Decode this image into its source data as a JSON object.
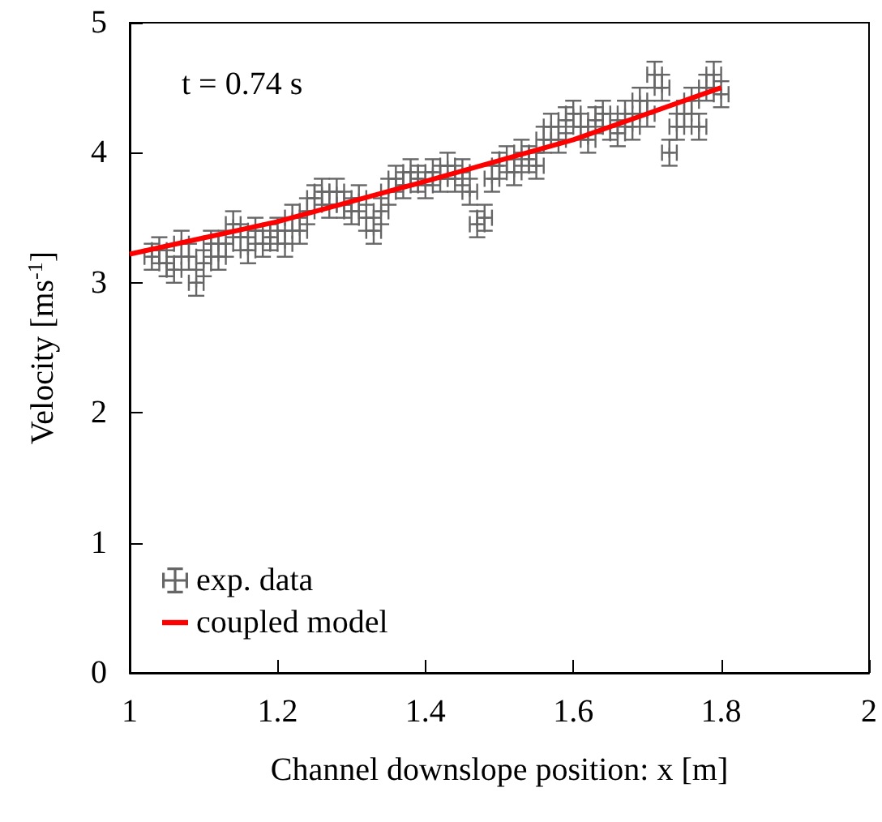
{
  "chart_data": {
    "type": "scatter",
    "xlabel": "Channel downslope position: x [m]",
    "ylabel": "Velocity [ms$^{-1}$]",
    "xlim": [
      1,
      2
    ],
    "xticks": [
      1,
      1.2,
      1.4,
      1.6,
      1.8,
      2
    ],
    "ylim": [
      0,
      5
    ],
    "yticks": [
      0,
      1,
      2,
      3,
      4,
      5
    ],
    "annotations": [
      "t = 0.74 s"
    ],
    "legend": "bottom left",
    "grid": false,
    "series": [
      {
        "name": "exp. data",
        "marker": "cross",
        "color": "#666666",
        "x": [
          1.03,
          1.04,
          1.05,
          1.06,
          1.07,
          1.08,
          1.09,
          1.1,
          1.11,
          1.12,
          1.13,
          1.14,
          1.15,
          1.16,
          1.17,
          1.18,
          1.19,
          1.2,
          1.21,
          1.22,
          1.23,
          1.24,
          1.25,
          1.26,
          1.27,
          1.28,
          1.29,
          1.3,
          1.31,
          1.32,
          1.33,
          1.34,
          1.35,
          1.36,
          1.37,
          1.38,
          1.39,
          1.4,
          1.41,
          1.42,
          1.43,
          1.44,
          1.45,
          1.46,
          1.47,
          1.48,
          1.49,
          1.5,
          1.51,
          1.52,
          1.53,
          1.54,
          1.55,
          1.56,
          1.57,
          1.58,
          1.59,
          1.6,
          1.61,
          1.62,
          1.63,
          1.64,
          1.65,
          1.66,
          1.67,
          1.68,
          1.69,
          1.7,
          1.71,
          1.72,
          1.73,
          1.74,
          1.75,
          1.76,
          1.77,
          1.78,
          1.79,
          1.8
        ],
        "values": [
          3.2,
          3.25,
          3.15,
          3.1,
          3.3,
          3.2,
          3.0,
          3.15,
          3.3,
          3.2,
          3.3,
          3.45,
          3.35,
          3.25,
          3.4,
          3.3,
          3.35,
          3.4,
          3.3,
          3.5,
          3.4,
          3.55,
          3.65,
          3.7,
          3.6,
          3.7,
          3.6,
          3.55,
          3.65,
          3.5,
          3.4,
          3.55,
          3.7,
          3.8,
          3.75,
          3.85,
          3.8,
          3.75,
          3.85,
          3.8,
          3.9,
          3.8,
          3.85,
          3.7,
          3.45,
          3.5,
          3.8,
          3.9,
          3.95,
          3.85,
          4.0,
          3.95,
          3.9,
          4.1,
          4.2,
          4.1,
          4.25,
          4.3,
          4.2,
          4.1,
          4.25,
          4.3,
          4.2,
          4.15,
          4.3,
          4.2,
          4.4,
          4.3,
          4.6,
          4.5,
          4.0,
          4.2,
          4.3,
          4.4,
          4.2,
          4.5,
          4.6,
          4.45
        ],
        "errors": [
          0.1,
          0.1,
          0.1,
          0.1,
          0.1,
          0.1,
          0.1,
          0.1,
          0.1,
          0.1,
          0.1,
          0.1,
          0.1,
          0.1,
          0.1,
          0.1,
          0.1,
          0.1,
          0.1,
          0.1,
          0.1,
          0.1,
          0.1,
          0.1,
          0.1,
          0.1,
          0.1,
          0.1,
          0.1,
          0.1,
          0.1,
          0.1,
          0.1,
          0.1,
          0.1,
          0.1,
          0.1,
          0.1,
          0.1,
          0.1,
          0.1,
          0.1,
          0.1,
          0.1,
          0.1,
          0.1,
          0.1,
          0.1,
          0.1,
          0.1,
          0.1,
          0.1,
          0.1,
          0.1,
          0.1,
          0.1,
          0.1,
          0.1,
          0.1,
          0.1,
          0.1,
          0.1,
          0.1,
          0.1,
          0.1,
          0.1,
          0.1,
          0.1,
          0.1,
          0.1,
          0.1,
          0.1,
          0.1,
          0.1,
          0.1,
          0.1,
          0.1,
          0.1
        ],
        "xerrors": [
          0.01,
          0.01,
          0.01,
          0.01,
          0.01,
          0.01,
          0.01,
          0.01,
          0.01,
          0.01,
          0.01,
          0.01,
          0.01,
          0.01,
          0.01,
          0.01,
          0.01,
          0.01,
          0.01,
          0.01,
          0.01,
          0.01,
          0.01,
          0.01,
          0.01,
          0.01,
          0.01,
          0.01,
          0.01,
          0.01,
          0.01,
          0.01,
          0.01,
          0.01,
          0.01,
          0.01,
          0.01,
          0.01,
          0.01,
          0.01,
          0.01,
          0.01,
          0.01,
          0.01,
          0.01,
          0.01,
          0.01,
          0.01,
          0.01,
          0.01,
          0.01,
          0.01,
          0.01,
          0.01,
          0.01,
          0.01,
          0.01,
          0.01,
          0.01,
          0.01,
          0.01,
          0.01,
          0.01,
          0.01,
          0.01,
          0.01,
          0.01,
          0.01,
          0.01,
          0.01,
          0.01,
          0.01,
          0.01,
          0.01,
          0.01,
          0.01,
          0.01,
          0.01
        ]
      },
      {
        "name": "coupled model",
        "type": "line",
        "marker": "none",
        "line_style": "solid",
        "color": "#ff0000",
        "x": [
          1.0,
          1.2,
          1.4,
          1.6,
          1.8
        ],
        "values": [
          3.22,
          3.47,
          3.78,
          4.1,
          4.5
        ]
      }
    ]
  }
}
